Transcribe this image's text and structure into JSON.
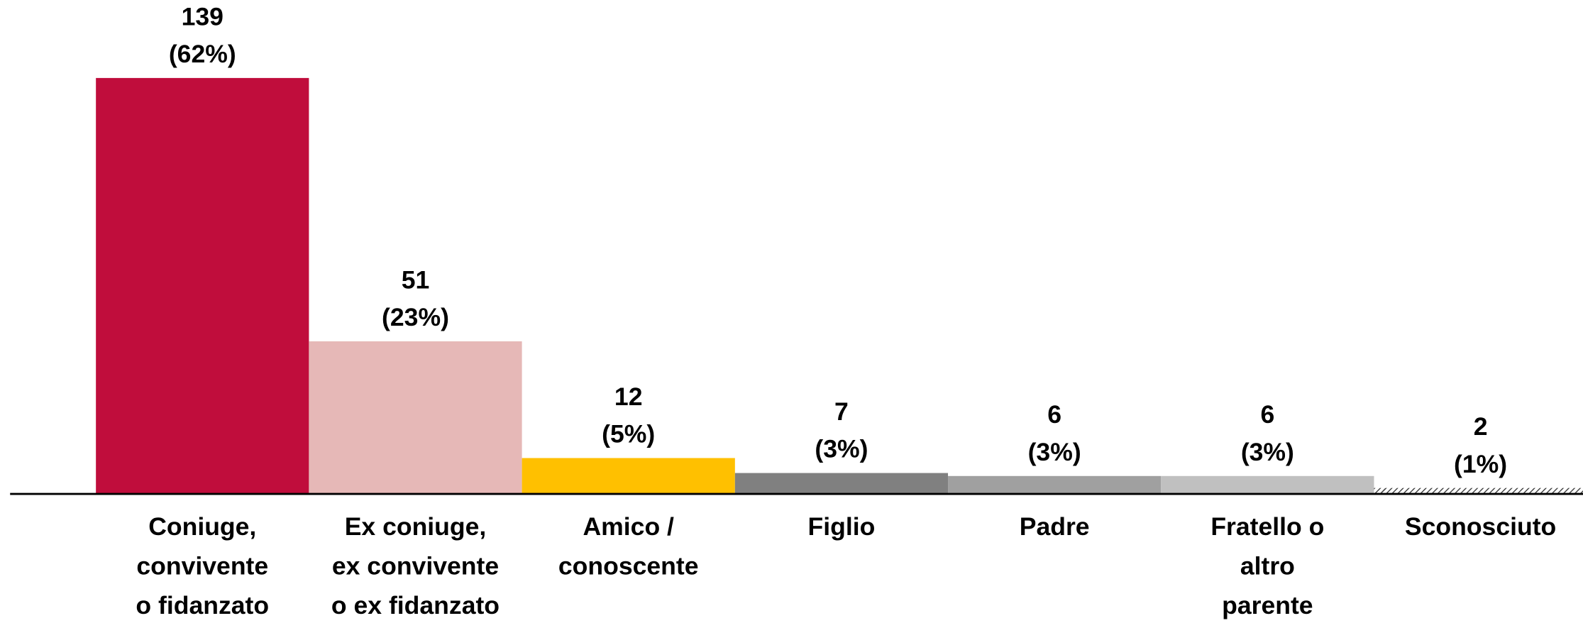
{
  "chart_data": {
    "type": "bar",
    "categories": [
      [
        "Coniuge,",
        "convivente",
        "o fidanzato"
      ],
      [
        "Ex coniuge,",
        "ex convivente",
        "o ex fidanzato"
      ],
      [
        "Amico /",
        "conoscente"
      ],
      [
        "Figlio"
      ],
      [
        "Padre"
      ],
      [
        "Fratello o",
        "altro",
        "parente"
      ],
      [
        "Sconosciuto"
      ]
    ],
    "values": [
      139,
      51,
      12,
      7,
      6,
      6,
      2
    ],
    "value_labels": [
      [
        "139",
        "(62%)"
      ],
      [
        "51",
        "(23%)"
      ],
      [
        "12",
        "(5%)"
      ],
      [
        "7",
        "(3%)"
      ],
      [
        "6",
        "(3%)"
      ],
      [
        "6",
        "(3%)"
      ],
      [
        "2",
        "(1%)"
      ]
    ],
    "colors": [
      "#c00d3c",
      "#e6b8b7",
      "#ffc000",
      "#808080",
      "#a0a0a0",
      "#c0c0c0",
      "#404040"
    ],
    "hatch": [
      false,
      false,
      false,
      false,
      false,
      false,
      true
    ],
    "grid": false
  }
}
